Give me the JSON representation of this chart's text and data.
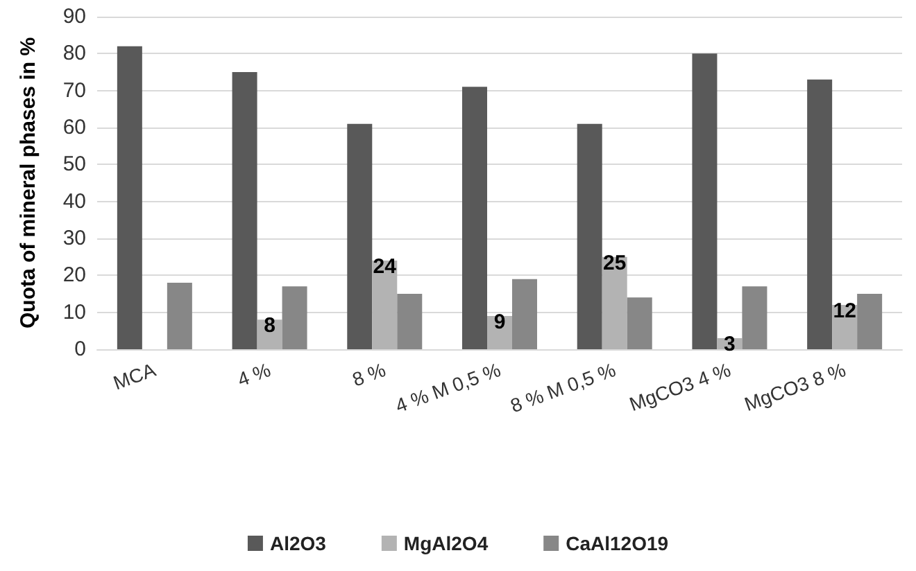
{
  "chart_data": {
    "type": "bar",
    "ylabel": "Quota of mineral phases in %",
    "categories": [
      "MCA",
      "4 %",
      "8 %",
      "4 % M 0,5 %",
      "8 % M 0,5 %",
      "MgCO3 4 %",
      "MgCO3 8 %"
    ],
    "series": [
      {
        "name": "Al2O3",
        "color": "#595959",
        "values": [
          82,
          75,
          61,
          71,
          61,
          80,
          73
        ]
      },
      {
        "name": "MgAl2O4",
        "color": "#b3b3b3",
        "values": [
          null,
          8,
          24,
          9,
          25,
          3,
          12
        ],
        "value_labels": [
          null,
          "8",
          "24",
          "9",
          "25",
          "3",
          "12"
        ]
      },
      {
        "name": "CaAl12O19",
        "color": "#878787",
        "values": [
          18,
          17,
          15,
          19,
          14,
          17,
          15
        ]
      }
    ],
    "ylim": [
      0,
      90
    ],
    "yticks": [
      0,
      10,
      20,
      30,
      40,
      50,
      60,
      70,
      80,
      90
    ],
    "grid": "y",
    "legend": "bottom"
  }
}
